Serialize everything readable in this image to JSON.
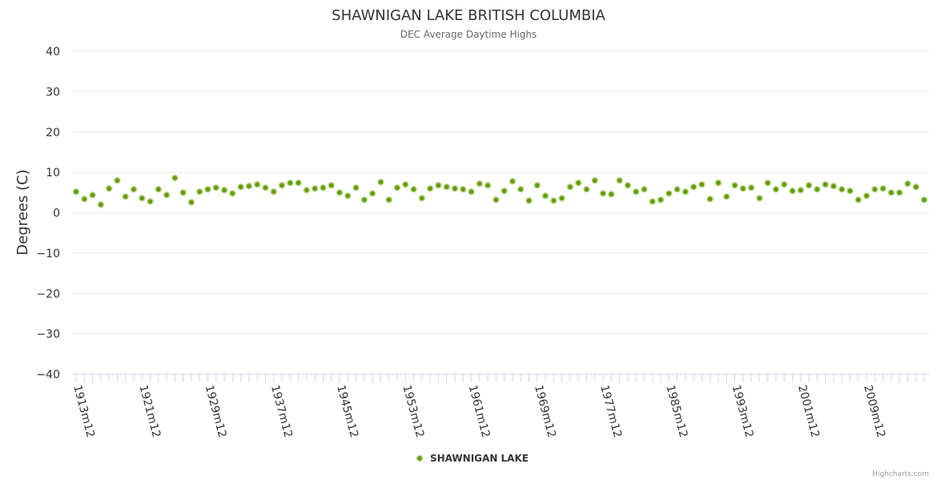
{
  "chart_data": {
    "type": "scatter",
    "title": "SHAWNIGAN LAKE BRITISH COLUMBIA",
    "subtitle": "DEC Average Daytime Highs",
    "ylabel": "Degrees (C)",
    "xlabel": "",
    "ylim": [
      -40,
      40
    ],
    "yticks": [
      40,
      30,
      20,
      10,
      0,
      -10,
      -20,
      -30,
      -40
    ],
    "x_start_year": 1913,
    "x_label_suffix": "m12",
    "x_tick_labels": [
      "1913m12",
      "1921m12",
      "1929m12",
      "1937m12",
      "1945m12",
      "1953m12",
      "1961m12",
      "1969m12",
      "1977m12",
      "1985m12",
      "1993m12",
      "2001m12",
      "2009m12"
    ],
    "grid": true,
    "legend_position": "bottom-center",
    "series": [
      {
        "name": "SHAWNIGAN LAKE",
        "color": "#669900",
        "values": [
          5.2,
          3.4,
          4.4,
          2.0,
          6.0,
          8.0,
          4.0,
          5.8,
          3.6,
          2.8,
          5.8,
          4.4,
          8.6,
          5.0,
          2.6,
          5.2,
          5.8,
          6.2,
          5.6,
          4.8,
          6.4,
          6.6,
          7.0,
          6.2,
          5.2,
          6.8,
          7.4,
          7.4,
          5.6,
          6.0,
          6.2,
          6.8,
          5.0,
          4.2,
          6.2,
          3.2,
          4.8,
          7.6,
          3.2,
          6.2,
          7.0,
          5.8,
          3.6,
          6.0,
          6.8,
          6.4,
          6.0,
          5.8,
          5.2,
          7.2,
          6.8,
          3.2,
          5.4,
          7.8,
          5.8,
          3.0,
          6.8,
          4.2,
          3.0,
          3.6,
          6.4,
          7.4,
          5.8,
          8.0,
          4.8,
          4.6,
          8.0,
          6.8,
          5.2,
          5.8,
          2.8,
          3.2,
          4.8,
          5.8,
          5.2,
          6.4,
          7.0,
          3.4,
          7.4,
          4.0,
          6.8,
          6.0,
          6.2,
          3.6,
          7.4,
          5.8,
          7.0,
          5.4,
          5.6,
          6.8,
          5.8,
          7.0,
          6.6,
          5.8,
          5.4,
          3.2,
          4.2,
          5.8,
          6.0,
          5.0,
          5.0,
          7.2,
          6.4,
          3.2
        ]
      }
    ]
  },
  "credits": "Highcharts.com"
}
